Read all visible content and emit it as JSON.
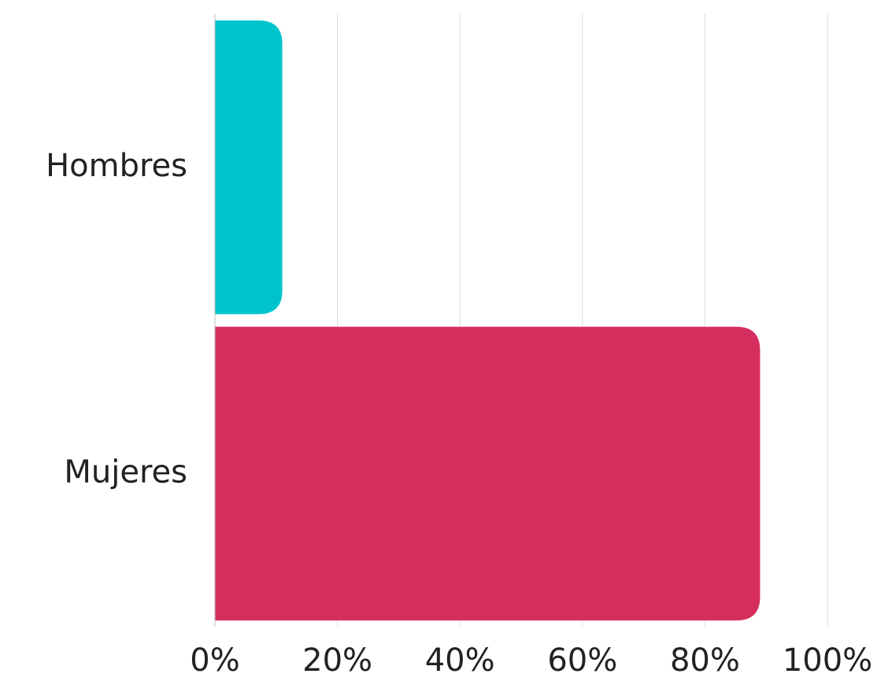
{
  "chart_data": {
    "type": "bar",
    "orientation": "horizontal",
    "title": "",
    "xlabel": "",
    "ylabel": "",
    "categories": [
      "Hombres",
      "Mujeres"
    ],
    "values": [
      11,
      89
    ],
    "unit": "%",
    "xlim": [
      0,
      100
    ],
    "xticks": [
      0,
      20,
      40,
      60,
      80,
      100
    ],
    "xtick_labels": [
      "0%",
      "20%",
      "40%",
      "60%",
      "80%",
      "100%"
    ],
    "grid": true,
    "legend": "none",
    "colors": [
      "#00c4cc",
      "#d62e5e"
    ]
  }
}
